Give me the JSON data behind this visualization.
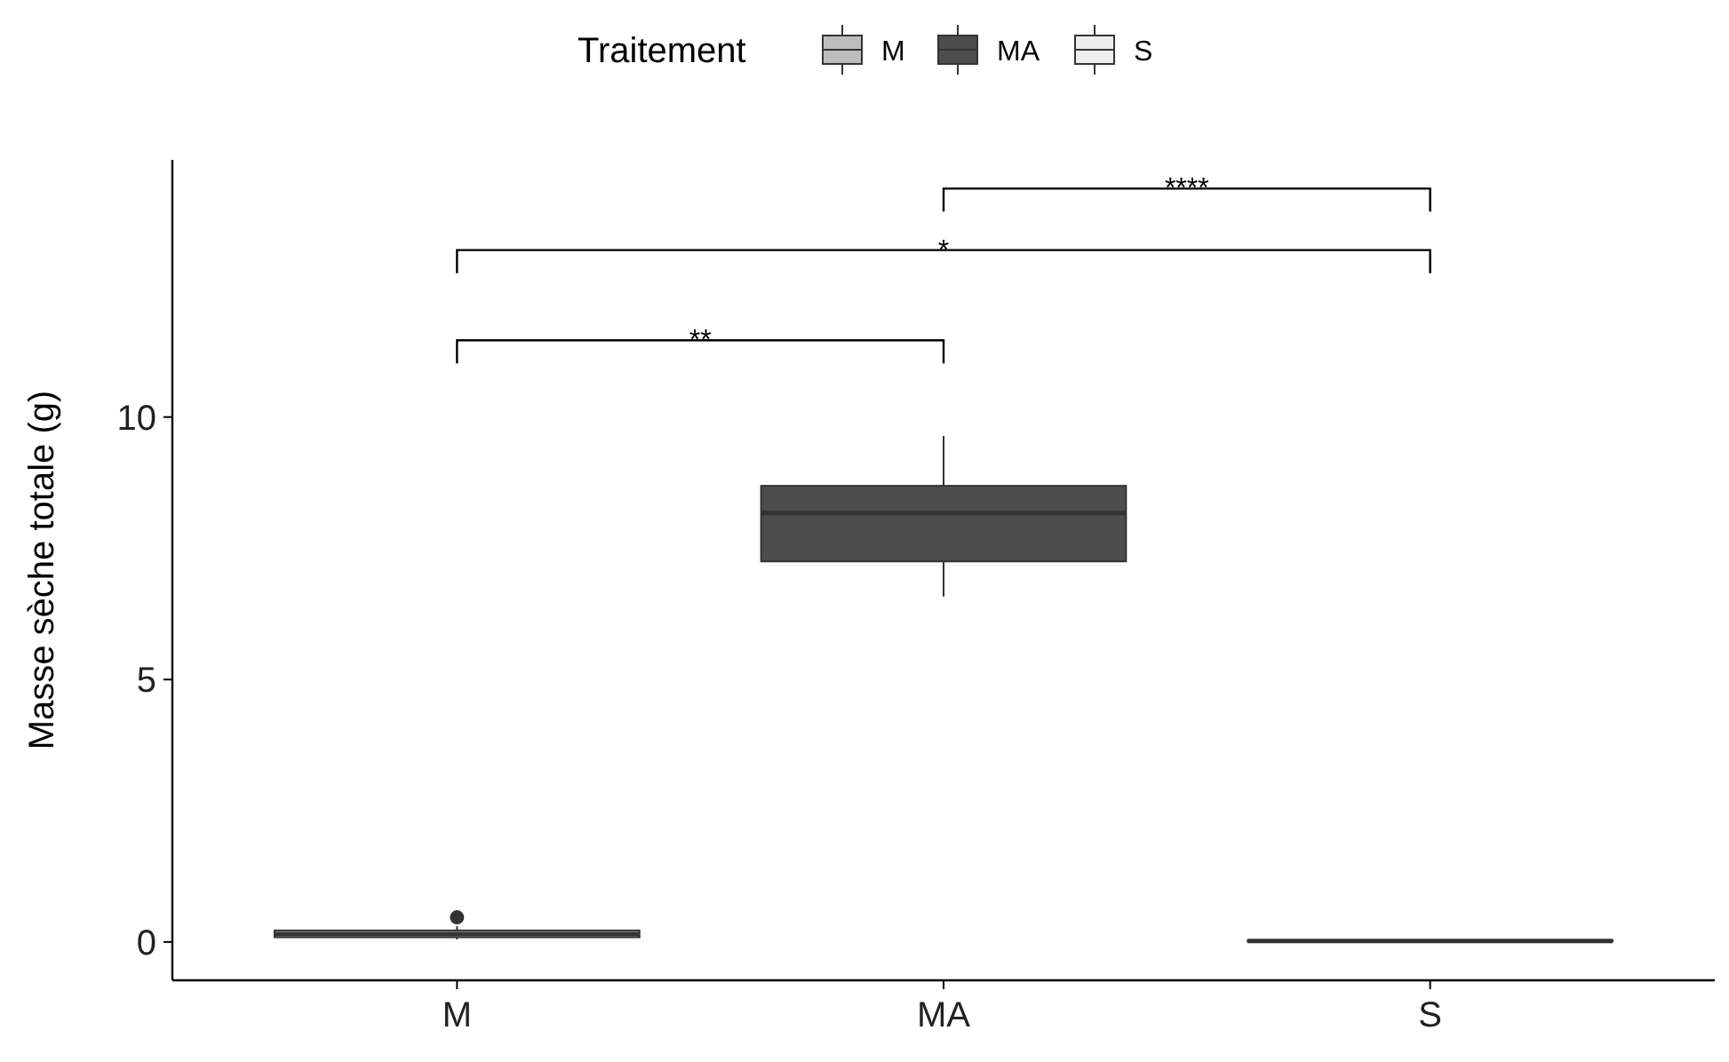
{
  "chart_data": {
    "type": "box",
    "ylabel": "Masse sèche totale (g)",
    "legend_title": "Traitement",
    "legend": "top",
    "categories": [
      "M",
      "MA",
      "S"
    ],
    "series": [
      {
        "name": "M",
        "color": "#bdbdbd",
        "boxes": [
          {
            "low": 0.05,
            "q1": 0.09,
            "median": 0.15,
            "q3": 0.22,
            "high": 0.3,
            "outliers": [
              0.47
            ]
          },
          null,
          null
        ]
      },
      {
        "name": "MA",
        "color": "#4d4d4d",
        "boxes": [
          null,
          {
            "low": 6.58,
            "q1": 7.25,
            "median": 8.17,
            "q3": 8.69,
            "high": 9.64
          },
          null
        ]
      },
      {
        "name": "S",
        "color": "#ededed",
        "boxes": [
          null,
          null,
          {
            "low": 0,
            "q1": 0.01,
            "median": 0.02,
            "q3": 0.03,
            "high": 0.04
          }
        ]
      }
    ],
    "ylim": [
      -0.73,
      14.9
    ],
    "yticks": [
      0,
      5,
      10
    ],
    "grid": false,
    "annotations": [
      "**",
      "*",
      "****"
    ]
  }
}
